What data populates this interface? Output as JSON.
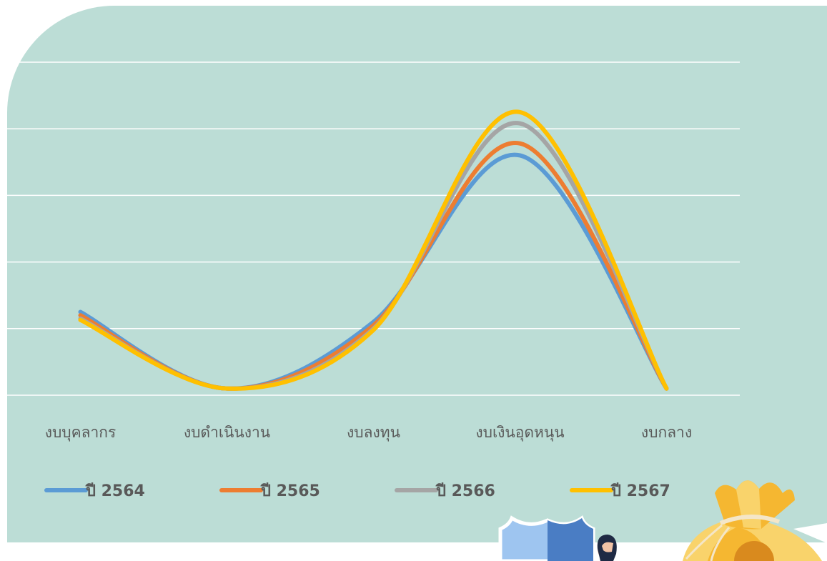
{
  "colors": {
    "background_panel": "#bcddd6",
    "gridline": "#ffffff",
    "text": "#595959"
  },
  "chart_data": {
    "type": "line",
    "smooth": true,
    "categories": [
      "งบบุคลากร",
      "งบดำเนินงาน",
      "งบลงทุน",
      "งบเงินอุดหนุน",
      "งบกลาง"
    ],
    "grid": true,
    "y_axis_labels_shown": false,
    "legend_position": "bottom",
    "series": [
      {
        "name": "ปี 2564",
        "color": "#5b9bd5",
        "values": [
          1.25,
          0.1,
          1.1,
          3.6,
          0.1
        ]
      },
      {
        "name": "ปี 2565",
        "color": "#ed7d31",
        "values": [
          1.2,
          0.1,
          1.05,
          3.78,
          0.1
        ]
      },
      {
        "name": "ปี 2566",
        "color": "#a5a5a5",
        "values": [
          1.15,
          0.1,
          1.0,
          4.08,
          0.1
        ]
      },
      {
        "name": "ปี 2567",
        "color": "#ffc000",
        "values": [
          1.13,
          0.1,
          0.98,
          4.25,
          0.1
        ]
      }
    ],
    "ylim": [
      0,
      5
    ]
  },
  "decorations": {
    "shield": "shield-illustration",
    "person": "person-illustration",
    "money_bag": "money-bag-illustration"
  }
}
